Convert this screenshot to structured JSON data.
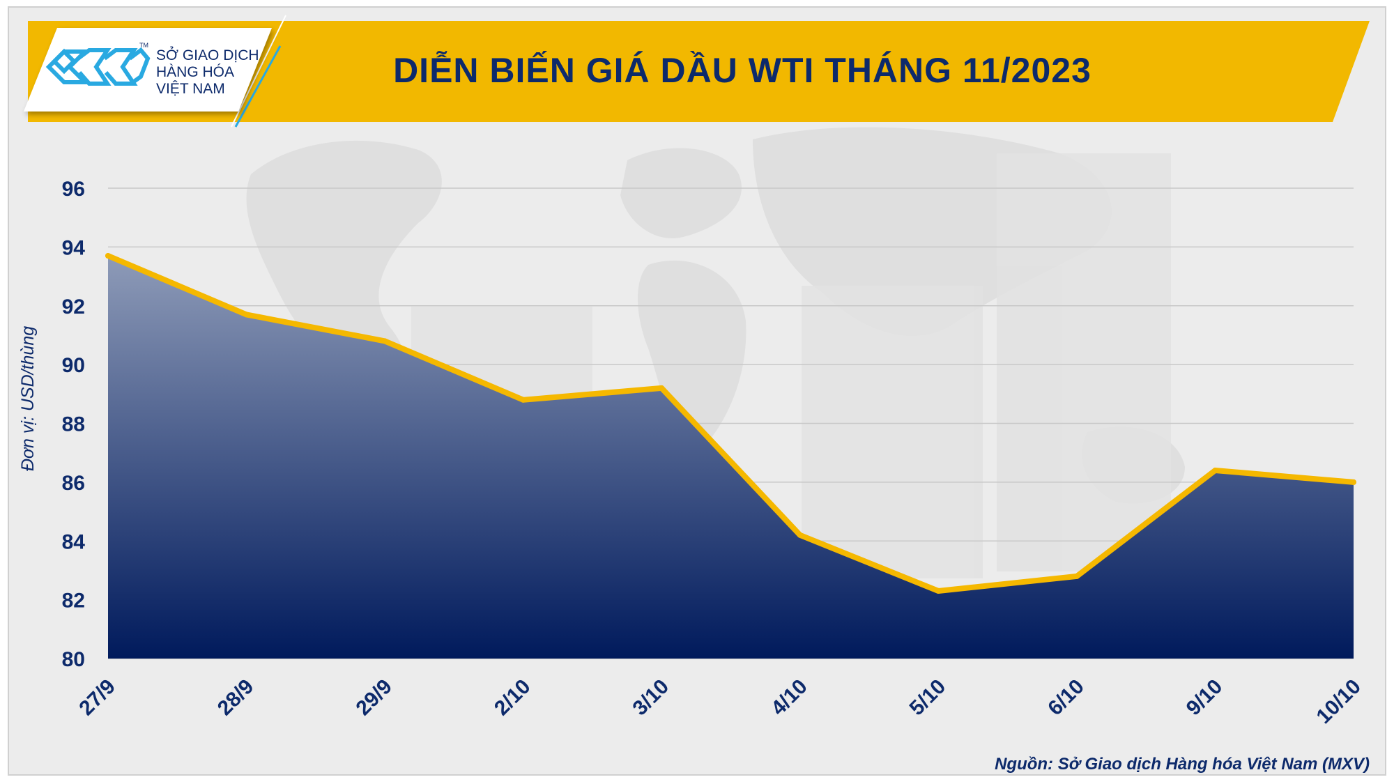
{
  "brand": {
    "line1": "SỞ GIAO DỊCH",
    "line2": "HÀNG HÓA",
    "line3": "VIỆT NAM",
    "tm": "TM",
    "logo_color": "#29a9e1"
  },
  "colors": {
    "banner": "#f2b800",
    "title": "#0d2a6b",
    "line": "#f5b800",
    "area_top": "#8e9bb8",
    "area_bottom": "#001a5c",
    "grid": "#c8c8c8"
  },
  "source": "Nguồn: Sở Giao dịch Hàng hóa Việt Nam (MXV)",
  "chart_data": {
    "type": "area",
    "title": "DIỄN BIẾN GIÁ DẦU WTI THÁNG 11/2023",
    "ylabel": "Đơn vị: USD/thùng",
    "xlabel": "",
    "categories": [
      "27/9",
      "28/9",
      "29/9",
      "2/10",
      "3/10",
      "4/10",
      "5/10",
      "6/10",
      "9/10",
      "10/10"
    ],
    "values": [
      93.7,
      91.7,
      90.8,
      88.8,
      89.2,
      84.2,
      82.3,
      82.8,
      86.4,
      86.0
    ],
    "yticks": [
      80,
      82,
      84,
      86,
      88,
      90,
      92,
      94,
      96
    ],
    "ylim": [
      80,
      96
    ],
    "grid": true,
    "legend": "none"
  }
}
